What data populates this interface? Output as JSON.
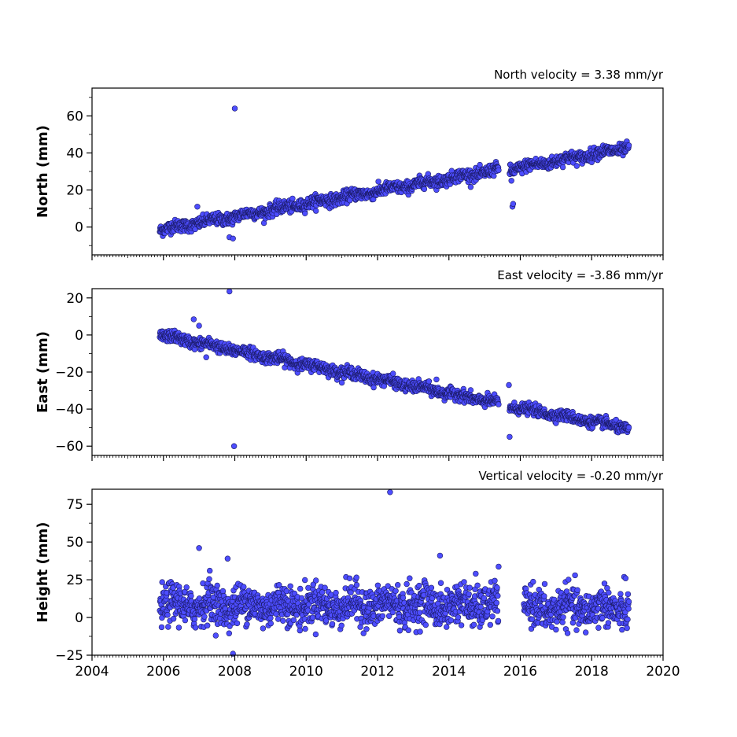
{
  "chart_data": [
    {
      "type": "scatter",
      "title": "North velocity = 3.38 mm/yr",
      "xlabel": "",
      "ylabel": "North (mm)",
      "xlim": [
        2004,
        2020
      ],
      "ylim": [
        -15,
        75
      ],
      "x_ticks": [
        "2004",
        "2006",
        "2008",
        "2010",
        "2012",
        "2014",
        "2016",
        "2018",
        "2020"
      ],
      "show_x_tick_labels": false,
      "y_ticks": [
        0,
        20,
        40,
        60
      ],
      "grid": false,
      "marker_color": "#4d4dff",
      "marker_edge": "#1a1a66",
      "trend": [
        {
          "x": [
            2005.9,
            2015.4
          ],
          "y": [
            -1.5,
            31.0
          ],
          "noise": 1.6
        },
        {
          "x": [
            2015.7,
            2019.05
          ],
          "y": [
            31.0,
            43.0
          ],
          "noise": 1.6
        }
      ],
      "outliers": [
        {
          "x": 2008.0,
          "y": 64
        },
        {
          "x": 2007.85,
          "y": -5.5
        },
        {
          "x": 2007.95,
          "y": -6.2
        },
        {
          "x": 2015.78,
          "y": 11
        },
        {
          "x": 2015.8,
          "y": 12.5
        },
        {
          "x": 2006.95,
          "y": 11
        },
        {
          "x": 2015.75,
          "y": 25
        }
      ]
    },
    {
      "type": "scatter",
      "title": "East velocity = -3.86 mm/yr",
      "xlabel": "",
      "ylabel": "East (mm)",
      "xlim": [
        2004,
        2020
      ],
      "ylim": [
        -65,
        25
      ],
      "x_ticks": [
        "2004",
        "2006",
        "2008",
        "2010",
        "2012",
        "2014",
        "2016",
        "2018",
        "2020"
      ],
      "show_x_tick_labels": false,
      "y_ticks": [
        -60,
        -40,
        -20,
        0,
        20
      ],
      "grid": false,
      "marker_color": "#4d4dff",
      "marker_edge": "#1a1a66",
      "trend": [
        {
          "x": [
            2005.9,
            2015.4
          ],
          "y": [
            0.0,
            -37.0
          ],
          "noise": 1.5
        },
        {
          "x": [
            2015.7,
            2019.05
          ],
          "y": [
            -38.5,
            -50.5
          ],
          "noise": 1.4
        }
      ],
      "outliers": [
        {
          "x": 2007.85,
          "y": 23.5
        },
        {
          "x": 2007.98,
          "y": -60
        },
        {
          "x": 2006.85,
          "y": 8.5
        },
        {
          "x": 2007.0,
          "y": 5
        },
        {
          "x": 2015.68,
          "y": -27
        },
        {
          "x": 2015.7,
          "y": -55
        },
        {
          "x": 2007.2,
          "y": -12
        },
        {
          "x": 2013.65,
          "y": -24
        }
      ]
    },
    {
      "type": "scatter",
      "title": "Vertical velocity = -0.20 mm/yr",
      "xlabel": "",
      "ylabel": "Height (mm)",
      "xlim": [
        2004,
        2020
      ],
      "ylim": [
        -25,
        85
      ],
      "x_ticks": [
        "2004",
        "2006",
        "2008",
        "2010",
        "2012",
        "2014",
        "2016",
        "2018",
        "2020"
      ],
      "show_x_tick_labels": true,
      "y_ticks": [
        -25,
        0,
        25,
        50,
        75
      ],
      "grid": false,
      "marker_color": "#4d4dff",
      "marker_edge": "#1a1a66",
      "trend": [
        {
          "x": [
            2005.9,
            2015.4
          ],
          "y": [
            8.0,
            8.0
          ],
          "noise": 6.5
        },
        {
          "x": [
            2016.1,
            2019.05
          ],
          "y": [
            6.0,
            6.0
          ],
          "noise": 6.5
        }
      ],
      "outliers": [
        {
          "x": 2012.35,
          "y": 83
        },
        {
          "x": 2007.0,
          "y": 46
        },
        {
          "x": 2013.75,
          "y": 41
        },
        {
          "x": 2007.8,
          "y": 39
        },
        {
          "x": 2007.3,
          "y": 31
        },
        {
          "x": 2014.75,
          "y": 29
        },
        {
          "x": 2007.95,
          "y": -24
        },
        {
          "x": 2012.9,
          "y": 26
        },
        {
          "x": 2018.95,
          "y": 26
        }
      ]
    }
  ]
}
